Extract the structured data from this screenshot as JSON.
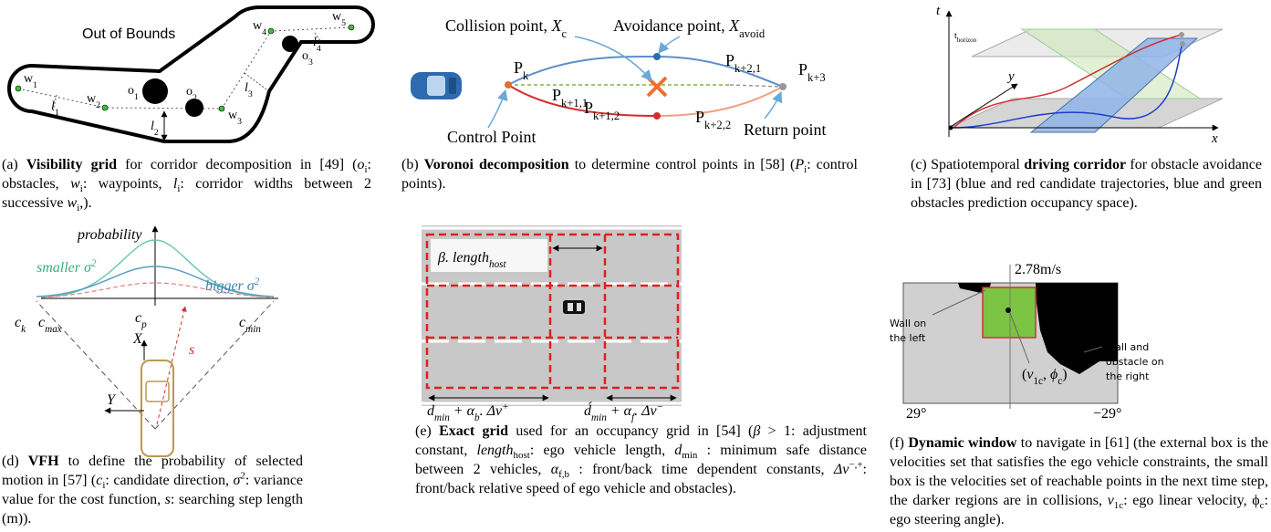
{
  "panel_a": {
    "labels": {
      "out_of_bounds": "Out of Bounds",
      "w1": [
        "w",
        {
          "sub": "1"
        }
      ],
      "w2": [
        "w",
        {
          "sub": "2"
        }
      ],
      "w3": [
        "w",
        {
          "sub": "3"
        }
      ],
      "w4": [
        "w",
        {
          "sub": "4"
        }
      ],
      "w5": [
        "w",
        {
          "sub": "5"
        }
      ],
      "o1": [
        "o",
        {
          "sub": "1"
        }
      ],
      "o2": [
        "o",
        {
          "sub": "2"
        }
      ],
      "o3": [
        "o",
        {
          "sub": "3"
        }
      ],
      "l1": [
        {
          "i": "l"
        },
        {
          "sub": "1"
        }
      ],
      "l2": [
        {
          "i": "l"
        },
        {
          "sub": "2"
        }
      ],
      "l3": [
        {
          "i": "l"
        },
        {
          "sub": "3"
        }
      ],
      "l4": [
        {
          "i": "l"
        },
        {
          "sub": "4"
        }
      ]
    },
    "caption": [
      "(a) ",
      {
        "b": "Visibility grid"
      },
      " for corridor decomposition in [49] (",
      {
        "i": "o"
      },
      {
        "sub": "i"
      },
      ": obstacles, ",
      {
        "i": "w"
      },
      {
        "sub": "i"
      },
      ": waypoints, ",
      {
        "i": "l"
      },
      {
        "sub": "i"
      },
      ": corridor widths between 2 successive ",
      {
        "i": "w"
      },
      {
        "sub": "i"
      },
      ",)."
    ]
  },
  "panel_b": {
    "labels": {
      "collision": [
        "Collision point, ",
        {
          "i": "X"
        },
        {
          "sub": "c"
        }
      ],
      "avoidance": [
        "Avoidance point, ",
        {
          "i": "X"
        },
        {
          "sub": "avoid"
        }
      ],
      "pk": [
        "P",
        {
          "sub": "k"
        }
      ],
      "pk11": [
        "P",
        {
          "sub": "k+1,1"
        }
      ],
      "pk21": [
        "P",
        {
          "sub": "k+2,1"
        }
      ],
      "pk3": [
        "P",
        {
          "sub": "k+3"
        }
      ],
      "pk12": [
        "P",
        {
          "sub": "k+1,2"
        }
      ],
      "pk22": [
        "P",
        {
          "sub": "k+2,2"
        }
      ],
      "control": "Control Point",
      "return": "Return point"
    },
    "caption": [
      "(b) ",
      {
        "b": "Voronoi decomposition"
      },
      " to determine control points in [58] (",
      {
        "i": "P"
      },
      {
        "sub": "i"
      },
      ": control points)."
    ]
  },
  "panel_c": {
    "labels": {
      "t": "t",
      "thorizon": [
        "t",
        {
          "sub": "horizon"
        }
      ],
      "y": "y",
      "x": "x"
    },
    "caption": [
      "(c) Spatiotemporal ",
      {
        "b": "driving corridor"
      },
      " for obstacle avoidance in [73] (blue and red candidate trajectories, blue and green obstacles prediction occupancy space)."
    ]
  },
  "panel_d": {
    "labels": {
      "probability": "probability",
      "smaller": [
        "smaller σ",
        {
          "sup": "2"
        }
      ],
      "bigger": [
        "bigger σ",
        {
          "sup": "2"
        }
      ],
      "ck": [
        "c",
        {
          "sub": "k"
        }
      ],
      "cmax": [
        "c",
        {
          "sub": "max"
        }
      ],
      "cp": [
        "c",
        {
          "sub": "p"
        }
      ],
      "cmin": [
        "c",
        {
          "sub": "min"
        }
      ],
      "s": "s",
      "X": "X",
      "Y": "Y"
    },
    "caption": [
      "(d) ",
      {
        "b": "VFH"
      },
      " to define the probability of selected motion in [57] (",
      {
        "i": "c"
      },
      {
        "sub": "i"
      },
      ": candidate direction, ",
      {
        "i": "σ"
      },
      {
        "sup": "2"
      },
      ": variance value for the cost function, ",
      {
        "i": "s"
      },
      ": searching step length (m))."
    ]
  },
  "panel_e": {
    "labels": {
      "beta": [
        "β. length",
        {
          "sub": "host"
        }
      ],
      "left": [
        "d",
        {
          "sub": "min"
        },
        " + α",
        {
          "sub": "b"
        },
        ". Δv",
        {
          "sup": "+"
        }
      ],
      "right": [
        "d́",
        {
          "sub": "min"
        },
        " + α",
        {
          "sub": "f"
        },
        ". Δv",
        {
          "sup": "−"
        }
      ]
    },
    "caption": [
      "(e) ",
      {
        "b": "Exact grid"
      },
      " used for an occupancy grid in [54] (",
      {
        "i": "β"
      },
      " > 1: adjustment constant, ",
      {
        "i": "length"
      },
      {
        "sub": "host"
      },
      ": ego vehicle length, ",
      {
        "i": "d"
      },
      {
        "sub": "min"
      },
      " : minimum safe distance between 2 vehicles, ",
      {
        "i": "α"
      },
      {
        "sub": "f,b"
      },
      " : front/back time dependent constants, ",
      {
        "i": "Δv"
      },
      {
        "sup": "−,+"
      },
      ": front/back relative speed of ego vehicle and obstacles)."
    ]
  },
  "panel_f": {
    "labels": {
      "speed": "2.78m/s",
      "wall_left": [
        "Wall on",
        "the left"
      ],
      "wall_right": [
        "Wall and",
        "obstacle on",
        "the right"
      ],
      "point": [
        "(",
        {
          "i": "v"
        },
        {
          "sub": "1c"
        },
        ",  ",
        {
          "i": "ϕ"
        },
        {
          "sub": "c"
        },
        ")"
      ],
      "left_angle": "29°",
      "right_angle": "−29°"
    },
    "caption": [
      "(f) ",
      {
        "b": "Dynamic window"
      },
      " to navigate in [61] (the external box is the velocities set that satisfies the ego vehicle constraints, the small box is the velocities set of reachable points in the next time step, the darker regions are in collisions, ",
      {
        "i": "v"
      },
      {
        "sub": "1c"
      },
      ": ego linear velocity, ϕ",
      {
        "sub": "c"
      },
      ": ego steering angle)."
    ]
  }
}
